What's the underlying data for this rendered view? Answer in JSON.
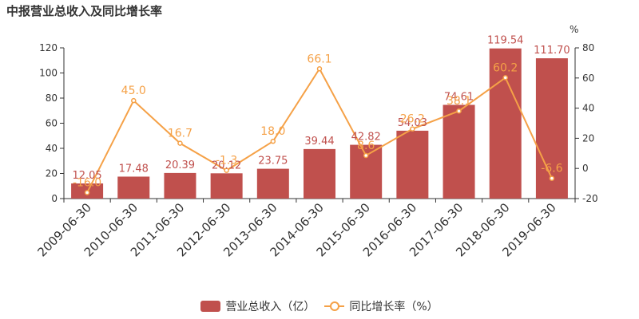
{
  "title": "中报营业总收入及同比增长率",
  "right_axis_unit": "%",
  "colors": {
    "bar": "#c0504d",
    "bar_label": "#c0504d",
    "line": "#f5a147",
    "line_label": "#f5a147",
    "axis": "#333333"
  },
  "legend": {
    "bar_label": "营业总收入（亿）",
    "line_label": "同比增长率（%）"
  },
  "chart_data": {
    "type": "bar",
    "title": "中报营业总收入及同比增长率",
    "categories": [
      "2009-06-30",
      "2010-06-30",
      "2011-06-30",
      "2012-06-30",
      "2013-06-30",
      "2014-06-30",
      "2015-06-30",
      "2016-06-30",
      "2017-06-30",
      "2018-06-30",
      "2019-06-30"
    ],
    "series": [
      {
        "name": "营业总收入（亿）",
        "type": "bar",
        "axis": "left",
        "values": [
          12.05,
          17.48,
          20.39,
          20.12,
          23.75,
          39.44,
          42.82,
          54.03,
          74.61,
          119.54,
          111.7
        ],
        "labels": [
          "12.05",
          "17.48",
          "20.39",
          "20.12",
          "23.75",
          "39.44",
          "42.82",
          "54.03",
          "74.61",
          "119.54",
          "111.70"
        ]
      },
      {
        "name": "同比增长率（%）",
        "type": "line",
        "axis": "right",
        "values": [
          -16.0,
          45.0,
          16.7,
          -1.3,
          18.0,
          66.1,
          8.6,
          26.2,
          38.1,
          60.2,
          -6.6
        ],
        "labels": [
          "-16.0",
          "45.0",
          "16.7",
          "-1.3",
          "18.0",
          "66.1",
          "8.6",
          "26.2",
          "38.1",
          "60.2",
          "-6.6"
        ]
      }
    ],
    "left_axis": {
      "min": 0,
      "max": 120,
      "ticks": [
        0,
        20,
        40,
        60,
        80,
        100,
        120
      ]
    },
    "right_axis": {
      "min": -20,
      "max": 80,
      "ticks": [
        -20,
        0,
        20,
        40,
        60,
        80
      ],
      "unit": "%"
    },
    "grid": false,
    "legend_position": "bottom"
  }
}
